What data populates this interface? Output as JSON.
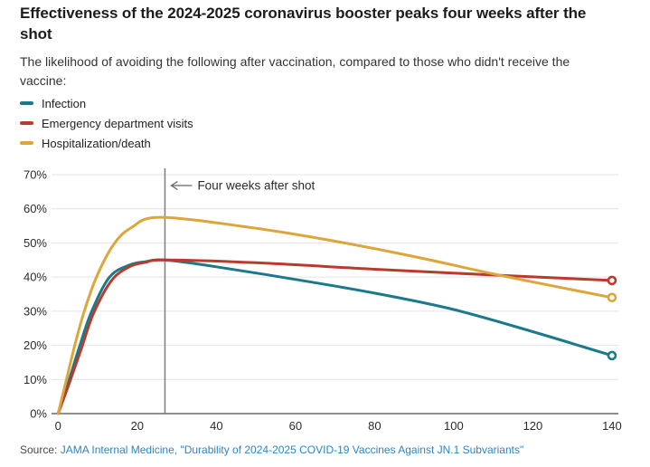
{
  "header": {
    "title": "Effectiveness of the 2024-2025 coronavirus booster peaks four weeks after the shot",
    "subtitle": "The likelihood of avoiding the following after vaccination, compared to those who didn't receive the vaccine:"
  },
  "chart_data": {
    "type": "line",
    "xlim": [
      0,
      140
    ],
    "ylim": [
      0,
      70
    ],
    "grid": "horizontal",
    "legend_position": "top-left",
    "x_ticks": [
      {
        "value": 0,
        "label": "0"
      },
      {
        "value": 20,
        "label": "20"
      },
      {
        "value": 40,
        "label": "40"
      },
      {
        "value": 60,
        "label": "60"
      },
      {
        "value": 80,
        "label": "80"
      },
      {
        "value": 100,
        "label": "100"
      },
      {
        "value": 120,
        "label": "120"
      },
      {
        "value": 140,
        "label": "140"
      }
    ],
    "y_ticks": [
      {
        "value": 0,
        "label": "0%"
      },
      {
        "value": 10,
        "label": "10%"
      },
      {
        "value": 20,
        "label": "20%"
      },
      {
        "value": 30,
        "label": "30%"
      },
      {
        "value": 40,
        "label": "40%"
      },
      {
        "value": 50,
        "label": "50%"
      },
      {
        "value": 60,
        "label": "60%"
      },
      {
        "value": 70,
        "label": "70%"
      }
    ],
    "reference_line": {
      "x": 27
    },
    "annotation": {
      "text": "Four weeks after shot",
      "arrow": "left",
      "at_x": 27
    },
    "series": [
      {
        "name": "Infection",
        "color": "#1a7a8a",
        "peak": {
          "x": 27,
          "y": 45
        },
        "end": {
          "x": 140,
          "y": 17
        },
        "points": [
          [
            0,
            0
          ],
          [
            2.8,
            10
          ],
          [
            5.5,
            20
          ],
          [
            8.5,
            30
          ],
          [
            13,
            40
          ],
          [
            18,
            43.5
          ],
          [
            22,
            44.5
          ],
          [
            27,
            45
          ],
          [
            40,
            43
          ],
          [
            60,
            39.3
          ],
          [
            80,
            35.3
          ],
          [
            100,
            30.5
          ],
          [
            120,
            24
          ],
          [
            140,
            17
          ]
        ]
      },
      {
        "name": "Emergency department visits",
        "color": "#b93b2d",
        "peak": {
          "x": 27,
          "y": 45
        },
        "end": {
          "x": 140,
          "y": 39
        },
        "points": [
          [
            0,
            0
          ],
          [
            3,
            9.5
          ],
          [
            6,
            19.5
          ],
          [
            9,
            29.5
          ],
          [
            13.5,
            39
          ],
          [
            18,
            43
          ],
          [
            22,
            44.3
          ],
          [
            27,
            45
          ],
          [
            50,
            44.2
          ],
          [
            80,
            42.3
          ],
          [
            110,
            40.6
          ],
          [
            140,
            39
          ]
        ]
      },
      {
        "name": "Hospitalization/death",
        "color": "#dda63a",
        "peak": {
          "x": 26,
          "y": 57.5
        },
        "end": {
          "x": 140,
          "y": 34
        },
        "points": [
          [
            0,
            0
          ],
          [
            2.1,
            10
          ],
          [
            4.2,
            20
          ],
          [
            6.6,
            30
          ],
          [
            9.7,
            40
          ],
          [
            14,
            49.5
          ],
          [
            18.5,
            54.5
          ],
          [
            26,
            57.5
          ],
          [
            50,
            54.3
          ],
          [
            70,
            50.5
          ],
          [
            90,
            46
          ],
          [
            113,
            40.2
          ],
          [
            140,
            34
          ]
        ]
      }
    ],
    "colors": {
      "gridline": "#e4e4e4",
      "axis": "#8f8f8f",
      "reference_line": "#7d7d7d",
      "annotation_arrow": "#666666"
    }
  },
  "source": {
    "prefix": "Source:",
    "link_text": "JAMA Internal Medicine, \"Durability of 2024-2025 COVID-19 Vaccines Against JN.1 Subvariants\""
  }
}
